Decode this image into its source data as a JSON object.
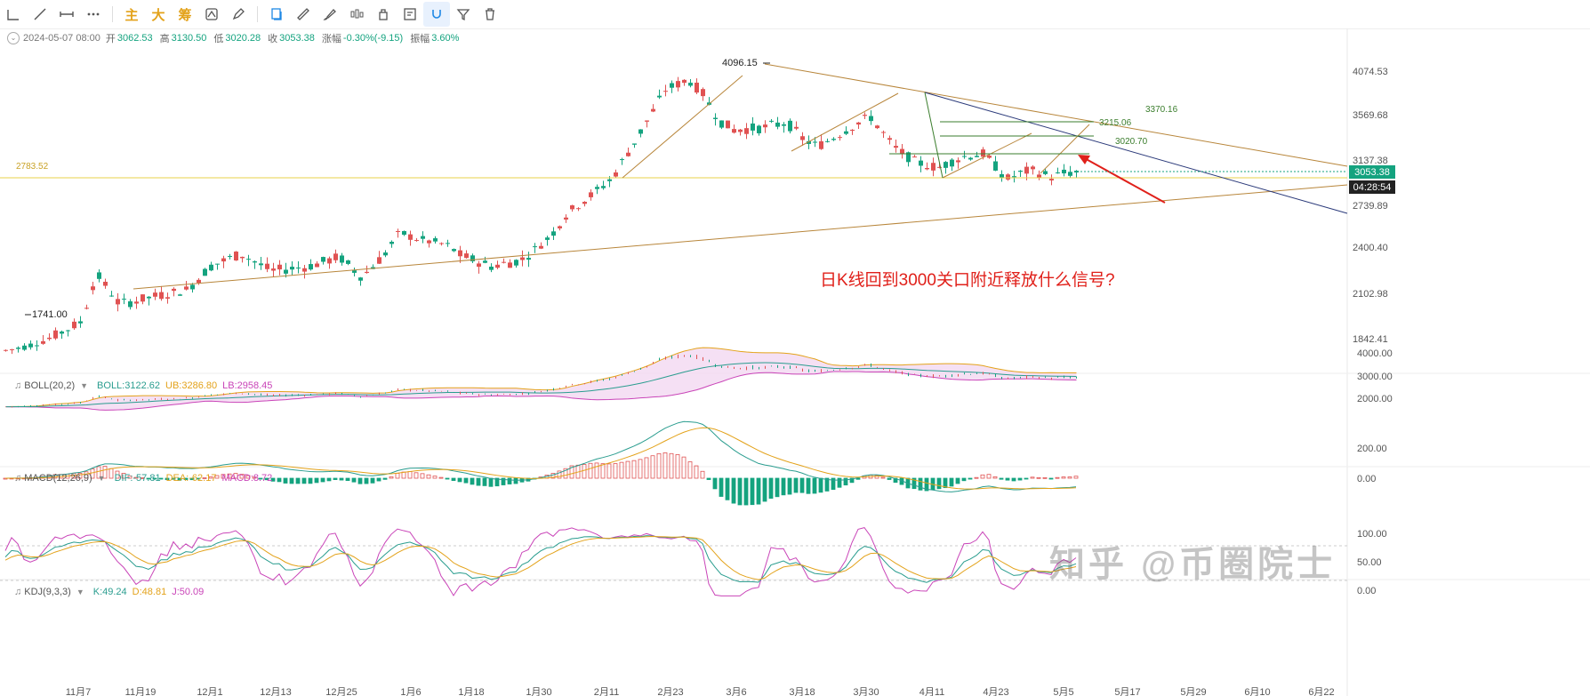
{
  "toolbar": {
    "tools": [
      "trend-line-tool",
      "ray-tool",
      "horizontal-line-tool",
      "more-tool"
    ],
    "text_buttons": [
      "主",
      "大",
      "筹"
    ],
    "tools2": [
      "indicator-tool",
      "ruler-tool",
      "brush-tool",
      "candle-type-tool",
      "copy-tool",
      "note-tool",
      "magnet-tool",
      "filter-tool",
      "delete-tool"
    ]
  },
  "info": {
    "date": "2024-05-07 08:00",
    "open_label": "开",
    "open": "3062.53",
    "high_label": "高",
    "high": "3130.50",
    "low_label": "低",
    "low": "3020.28",
    "close_label": "收",
    "close": "3053.38",
    "change_label": "涨幅",
    "change": "-0.30%(-9.15)",
    "amp_label": "振幅",
    "amp": "3.60%"
  },
  "price_axis": {
    "labels": [
      "4074.53",
      "3569.68",
      "3137.38",
      "2739.89",
      "2400.40",
      "2102.98",
      "1842.41"
    ],
    "current_price": "3053.38",
    "countdown": "04:28:54",
    "current_color": "#14a37f",
    "countdown_color": "#222222"
  },
  "chart_annotations": {
    "high_label": "4096.15",
    "low_label": "1741.00",
    "level_left": "2783.52",
    "level_3370": "3370.16",
    "level_3215": "3215.06",
    "level_3020": "3020.70",
    "note": "日K线回到3000关口附近释放什么信号?"
  },
  "boll": {
    "name": "BOLL(20,2)",
    "mid_label": "BOLL:3122.62",
    "ub_label": "UB:3286.80",
    "lb_label": "LB:2958.45",
    "axis": [
      "4000.00",
      "3000.00",
      "2000.00"
    ],
    "mid_color": "#2a9d8f",
    "ub_color": "#e3a21a",
    "lb_color": "#c944b8"
  },
  "macd": {
    "name": "MACD(12,26,9)",
    "dif_label": "DIF:-57.81",
    "dea_label": "DEA:-62.17",
    "macd_label": "MACD:8.72",
    "axis": [
      "200.00",
      "0.00"
    ],
    "dif_color": "#2a9d8f",
    "dea_color": "#e3a21a",
    "macd_color": "#c944b8"
  },
  "kdj": {
    "name": "KDJ(9,3,3)",
    "k_label": "K:49.24",
    "d_label": "D:48.81",
    "j_label": "J:50.09",
    "axis": [
      "100.00",
      "50.00",
      "0.00"
    ],
    "k_color": "#2a9d8f",
    "d_color": "#e3a21a",
    "j_color": "#c944b8"
  },
  "time_axis": [
    "11月7",
    "11月19",
    "12月1",
    "12月13",
    "12月25",
    "1月6",
    "1月18",
    "1月30",
    "2月11",
    "2月23",
    "3月6",
    "3月18",
    "3月30",
    "4月11",
    "4月23",
    "5月5",
    "5月17",
    "5月29",
    "6月10",
    "6月22"
  ],
  "watermark": "知乎 @币圈院士",
  "colors": {
    "up": "#e05252",
    "down": "#14a37f",
    "trend": "#b8863b",
    "navy": "#2b3a7a"
  }
}
